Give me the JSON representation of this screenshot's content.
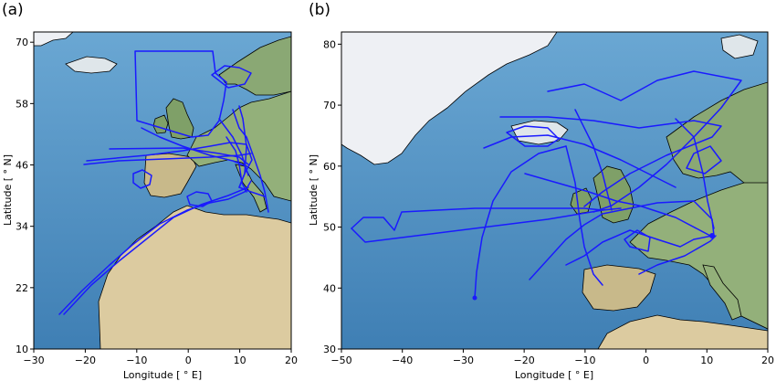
{
  "panels": [
    {
      "id": "a",
      "label": "(a)",
      "xlabel": "Longitude [ ° E]",
      "ylabel": "Latitude [ ° N]",
      "xlim": [
        -30,
        20
      ],
      "ylim": [
        10,
        72
      ],
      "xticks": [
        -30,
        -20,
        -10,
        0,
        10,
        20
      ],
      "xtick_labels": [
        "−30",
        "−20",
        "−10",
        "0",
        "10",
        "20"
      ],
      "yticks": [
        10,
        22,
        34,
        46,
        58,
        70
      ],
      "ytick_labels": [
        "10",
        "22",
        "34",
        "46",
        "58",
        "70"
      ],
      "colors": {
        "ocean": "#4f8fbf",
        "land_south": "#d8c8a0",
        "land_north": "#8fae72",
        "ice": "#eef0f4",
        "track": "#1a1aff"
      }
    },
    {
      "id": "b",
      "label": "(b)",
      "xlabel": "Longitude [ ° E]",
      "ylabel": "Latitude [ ° N]",
      "xlim": [
        -50,
        20
      ],
      "ylim": [
        30,
        82
      ],
      "xticks": [
        -50,
        -40,
        -30,
        -20,
        -10,
        0,
        10,
        20
      ],
      "xtick_labels": [
        "−50",
        "−40",
        "−30",
        "−20",
        "−10",
        "0",
        "10",
        "20"
      ],
      "yticks": [
        30,
        40,
        50,
        60,
        70,
        80
      ],
      "ytick_labels": [
        "30",
        "40",
        "50",
        "60",
        "70",
        "80"
      ],
      "colors": {
        "ocean": "#4f8fbf",
        "land_south": "#d8c8a0",
        "land_north": "#8fae72",
        "ice": "#eef0f4",
        "track": "#1a1aff"
      }
    }
  ]
}
